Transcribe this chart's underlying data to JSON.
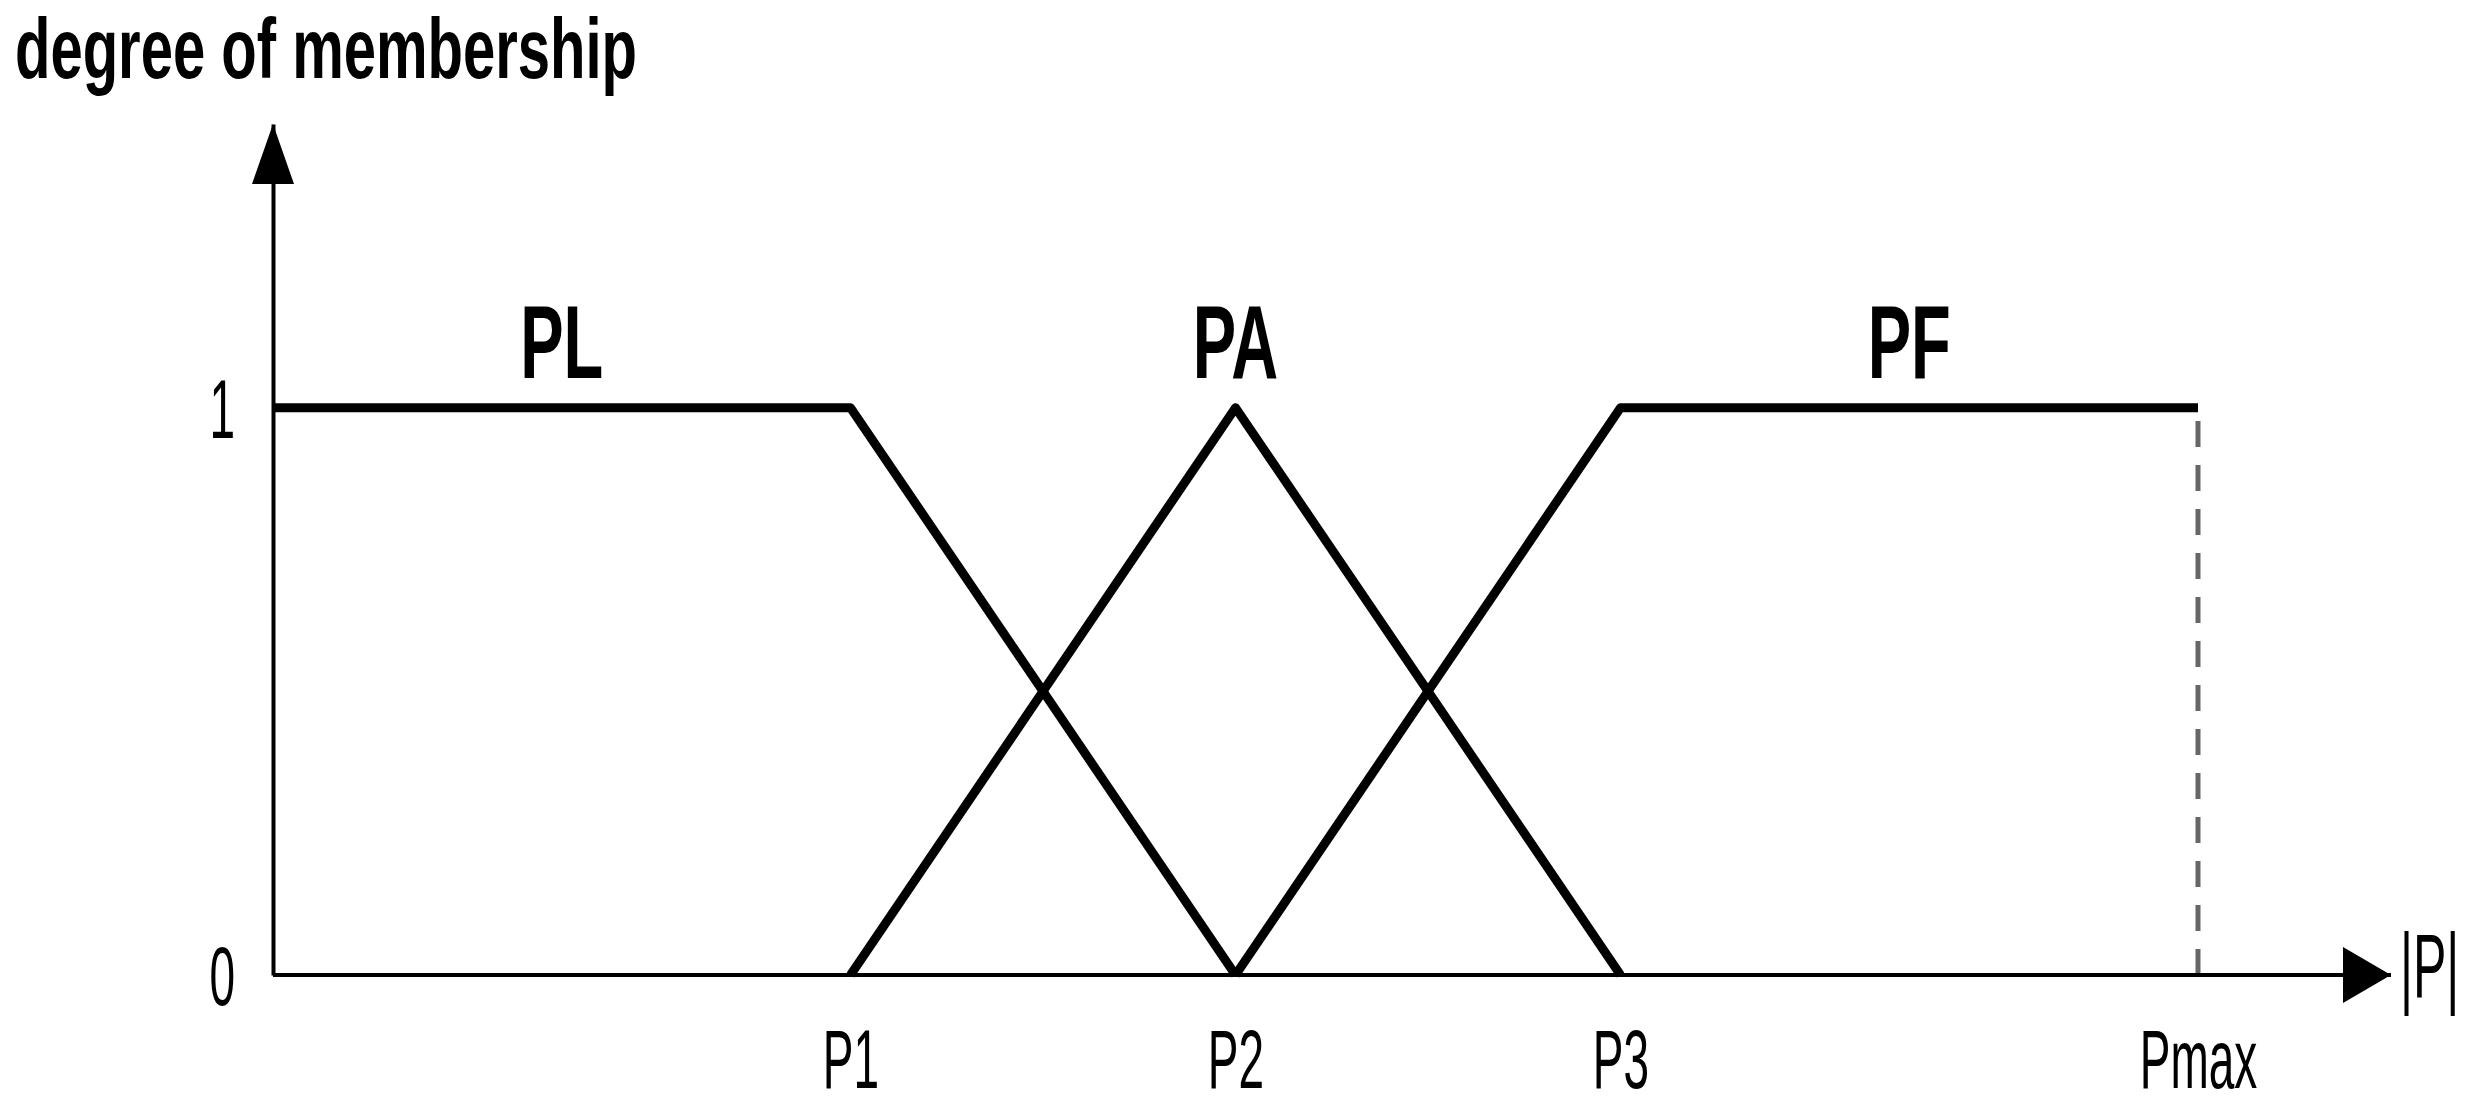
{
  "chart_data": {
    "type": "line",
    "ylabel": "degree of membership",
    "xlabel": "|P|",
    "categories": [
      null,
      null,
      null,
      "P1",
      null,
      "P2",
      null,
      "P3",
      null,
      null,
      "Pmax"
    ],
    "series": [
      {
        "name": "PL",
        "color": "#000000",
        "values": [
          1,
          1,
          1,
          1,
          0.5,
          0,
          null,
          null,
          null,
          null,
          null
        ]
      },
      {
        "name": "PA",
        "color": "#000000",
        "values": [
          null,
          null,
          null,
          0,
          0.5,
          1,
          0.5,
          0,
          null,
          null,
          null
        ]
      },
      {
        "name": "PF",
        "color": "#000000",
        "values": [
          null,
          null,
          null,
          null,
          null,
          0,
          0.5,
          1,
          1,
          1,
          1
        ]
      },
      {
        "color": "#666666",
        "x": [
          "Pmax",
          "Pmax"
        ],
        "values": [
          0,
          1
        ],
        "line_style": "dashed"
      }
    ],
    "ylim": [
      0,
      1.5
    ],
    "yticks": [
      0,
      1
    ]
  }
}
